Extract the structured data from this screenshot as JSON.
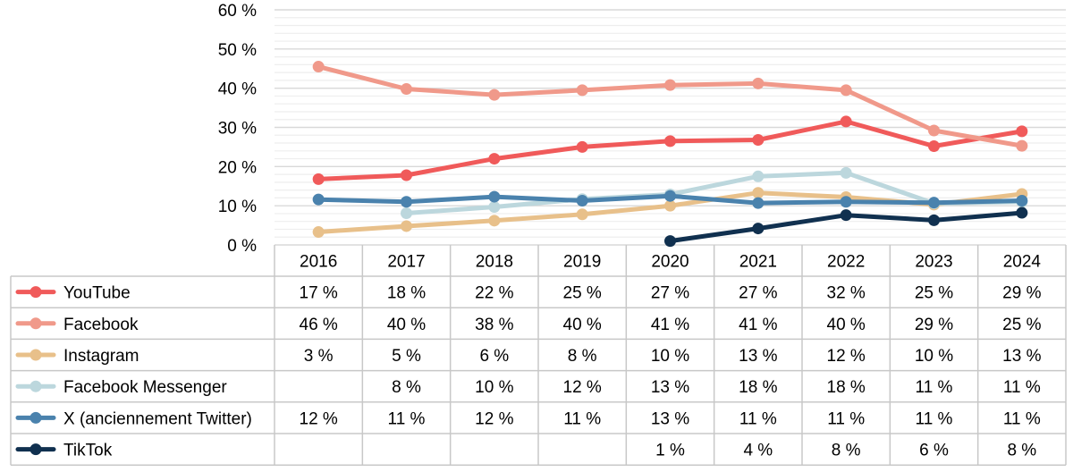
{
  "chart_data": {
    "type": "line",
    "title": "",
    "xlabel": "",
    "ylabel": "",
    "ylim": [
      0,
      60
    ],
    "y_ticks": [
      0,
      10,
      20,
      30,
      40,
      50,
      60
    ],
    "y_tick_labels": [
      "0 %",
      "10 %",
      "20 %",
      "30 %",
      "40 %",
      "50 %",
      "60 %"
    ],
    "categories": [
      "2016",
      "2017",
      "2018",
      "2019",
      "2020",
      "2021",
      "2022",
      "2023",
      "2024"
    ],
    "grid": true,
    "legend": "data-table-below",
    "series": [
      {
        "name": "YouTube",
        "color": "#f05a5a",
        "values": [
          16.8,
          17.8,
          22.0,
          25.0,
          26.5,
          26.8,
          31.5,
          25.2,
          29.0
        ],
        "labels": [
          "17 %",
          "18 %",
          "22 %",
          "25 %",
          "27 %",
          "27 %",
          "32 %",
          "25 %",
          "29 %"
        ]
      },
      {
        "name": "Facebook",
        "color": "#f0998a",
        "values": [
          45.5,
          39.8,
          38.3,
          39.5,
          40.8,
          41.2,
          39.5,
          29.2,
          25.3
        ],
        "labels": [
          "46 %",
          "40 %",
          "38 %",
          "40 %",
          "41 %",
          "41 %",
          "40 %",
          "29 %",
          "25 %"
        ]
      },
      {
        "name": "Instagram",
        "color": "#e8c08a",
        "values": [
          3.3,
          4.8,
          6.2,
          7.8,
          10.0,
          13.3,
          12.2,
          10.3,
          13.0
        ],
        "labels": [
          "3 %",
          "5 %",
          "6 %",
          "8 %",
          "10 %",
          "13 %",
          "12 %",
          "10 %",
          "13 %"
        ]
      },
      {
        "name": "Facebook Messenger",
        "color": "#bcd7dd",
        "values": [
          null,
          8.1,
          9.7,
          11.7,
          12.9,
          17.5,
          18.4,
          10.6,
          11.0
        ],
        "labels": [
          "",
          "8 %",
          "10 %",
          "12 %",
          "13 %",
          "18 %",
          "18 %",
          "11 %",
          "11 %"
        ]
      },
      {
        "name": "X (anciennement Twitter)",
        "color": "#4a82ad",
        "values": [
          11.6,
          11.0,
          12.3,
          11.3,
          12.5,
          10.7,
          11.0,
          10.8,
          11.3
        ],
        "labels": [
          "12 %",
          "11 %",
          "12 %",
          "11 %",
          "13 %",
          "11 %",
          "11 %",
          "11 %",
          "11 %"
        ]
      },
      {
        "name": "TikTok",
        "color": "#10304f",
        "values": [
          null,
          null,
          null,
          null,
          1.0,
          4.2,
          7.6,
          6.3,
          8.2
        ],
        "labels": [
          "",
          "",
          "",
          "",
          "1 %",
          "4 %",
          "8 %",
          "6 %",
          "8 %"
        ]
      }
    ]
  }
}
